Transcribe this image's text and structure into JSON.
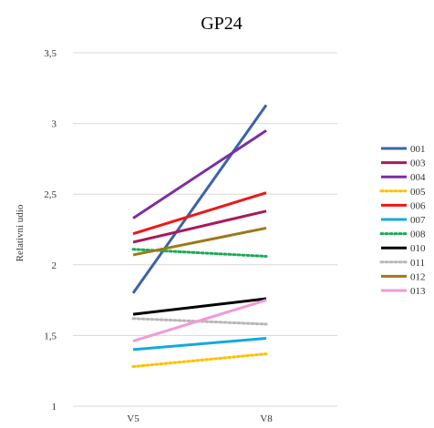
{
  "chart_data": {
    "type": "line",
    "title": "GP24",
    "xlabel": "",
    "ylabel": "Relativni udio",
    "categories": [
      "V5",
      "V8"
    ],
    "ylim": [
      1,
      3.5
    ],
    "yticks": [
      "1",
      "1,5",
      "2",
      "2,5",
      "3",
      "3,5"
    ],
    "ytick_values": [
      1,
      1.5,
      2,
      2.5,
      3,
      3.5
    ],
    "grid": true,
    "legend_position": "right",
    "series": [
      {
        "name": "001",
        "values": [
          1.8,
          3.13
        ],
        "color": "#3b63a8",
        "dash": "solid"
      },
      {
        "name": "003",
        "values": [
          2.16,
          2.38
        ],
        "color": "#a8195a",
        "dash": "solid"
      },
      {
        "name": "004",
        "values": [
          2.33,
          2.95
        ],
        "color": "#7b2fa3",
        "dash": "solid"
      },
      {
        "name": "005",
        "values": [
          1.28,
          1.37
        ],
        "color": "#ffc000",
        "dash": "dotted"
      },
      {
        "name": "006",
        "values": [
          2.22,
          2.51
        ],
        "color": "#f21616",
        "dash": "solid"
      },
      {
        "name": "007",
        "values": [
          1.4,
          1.48
        ],
        "color": "#14a9e0",
        "dash": "solid"
      },
      {
        "name": "008",
        "values": [
          2.11,
          2.06
        ],
        "color": "#1aaa55",
        "dash": "dotted"
      },
      {
        "name": "010",
        "values": [
          1.65,
          1.76
        ],
        "color": "#000000",
        "dash": "solid"
      },
      {
        "name": "011",
        "values": [
          1.62,
          1.58
        ],
        "color": "#b7b7b7",
        "dash": "dotted"
      },
      {
        "name": "012",
        "values": [
          2.07,
          2.26
        ],
        "color": "#9c7a1a",
        "dash": "solid"
      },
      {
        "name": "013",
        "values": [
          1.46,
          1.75
        ],
        "color": "#f29ad6",
        "dash": "solid"
      }
    ]
  }
}
